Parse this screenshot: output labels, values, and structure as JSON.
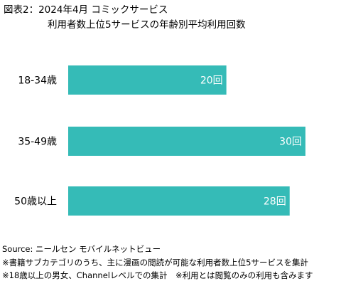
{
  "title": {
    "line1": "図表2：2024年4月 コミックサービス",
    "line2": "利用者数上位5サービスの年齢別平均利用回数"
  },
  "chart_data": {
    "type": "bar",
    "orientation": "horizontal",
    "categories": [
      "18-34歳",
      "35-49歳",
      "50歳以上"
    ],
    "values": [
      20,
      30,
      28
    ],
    "data_labels": [
      "20回",
      "30回",
      "28回"
    ],
    "unit": "回",
    "xlim": [
      0,
      30
    ],
    "grid": false,
    "bar_color": "#35bbb7",
    "label_color": "#ffffff"
  },
  "notes": {
    "source": "Source: ニールセン モバイルネットビュー",
    "note1": "※書籍サブカテゴリのうち、主に漫画の閲読が可能な利用者数上位5サービスを集計",
    "note2": "※18歳以上の男女、Channelレベルでの集計　※利用とは閲覧のみの利用も含みます"
  }
}
